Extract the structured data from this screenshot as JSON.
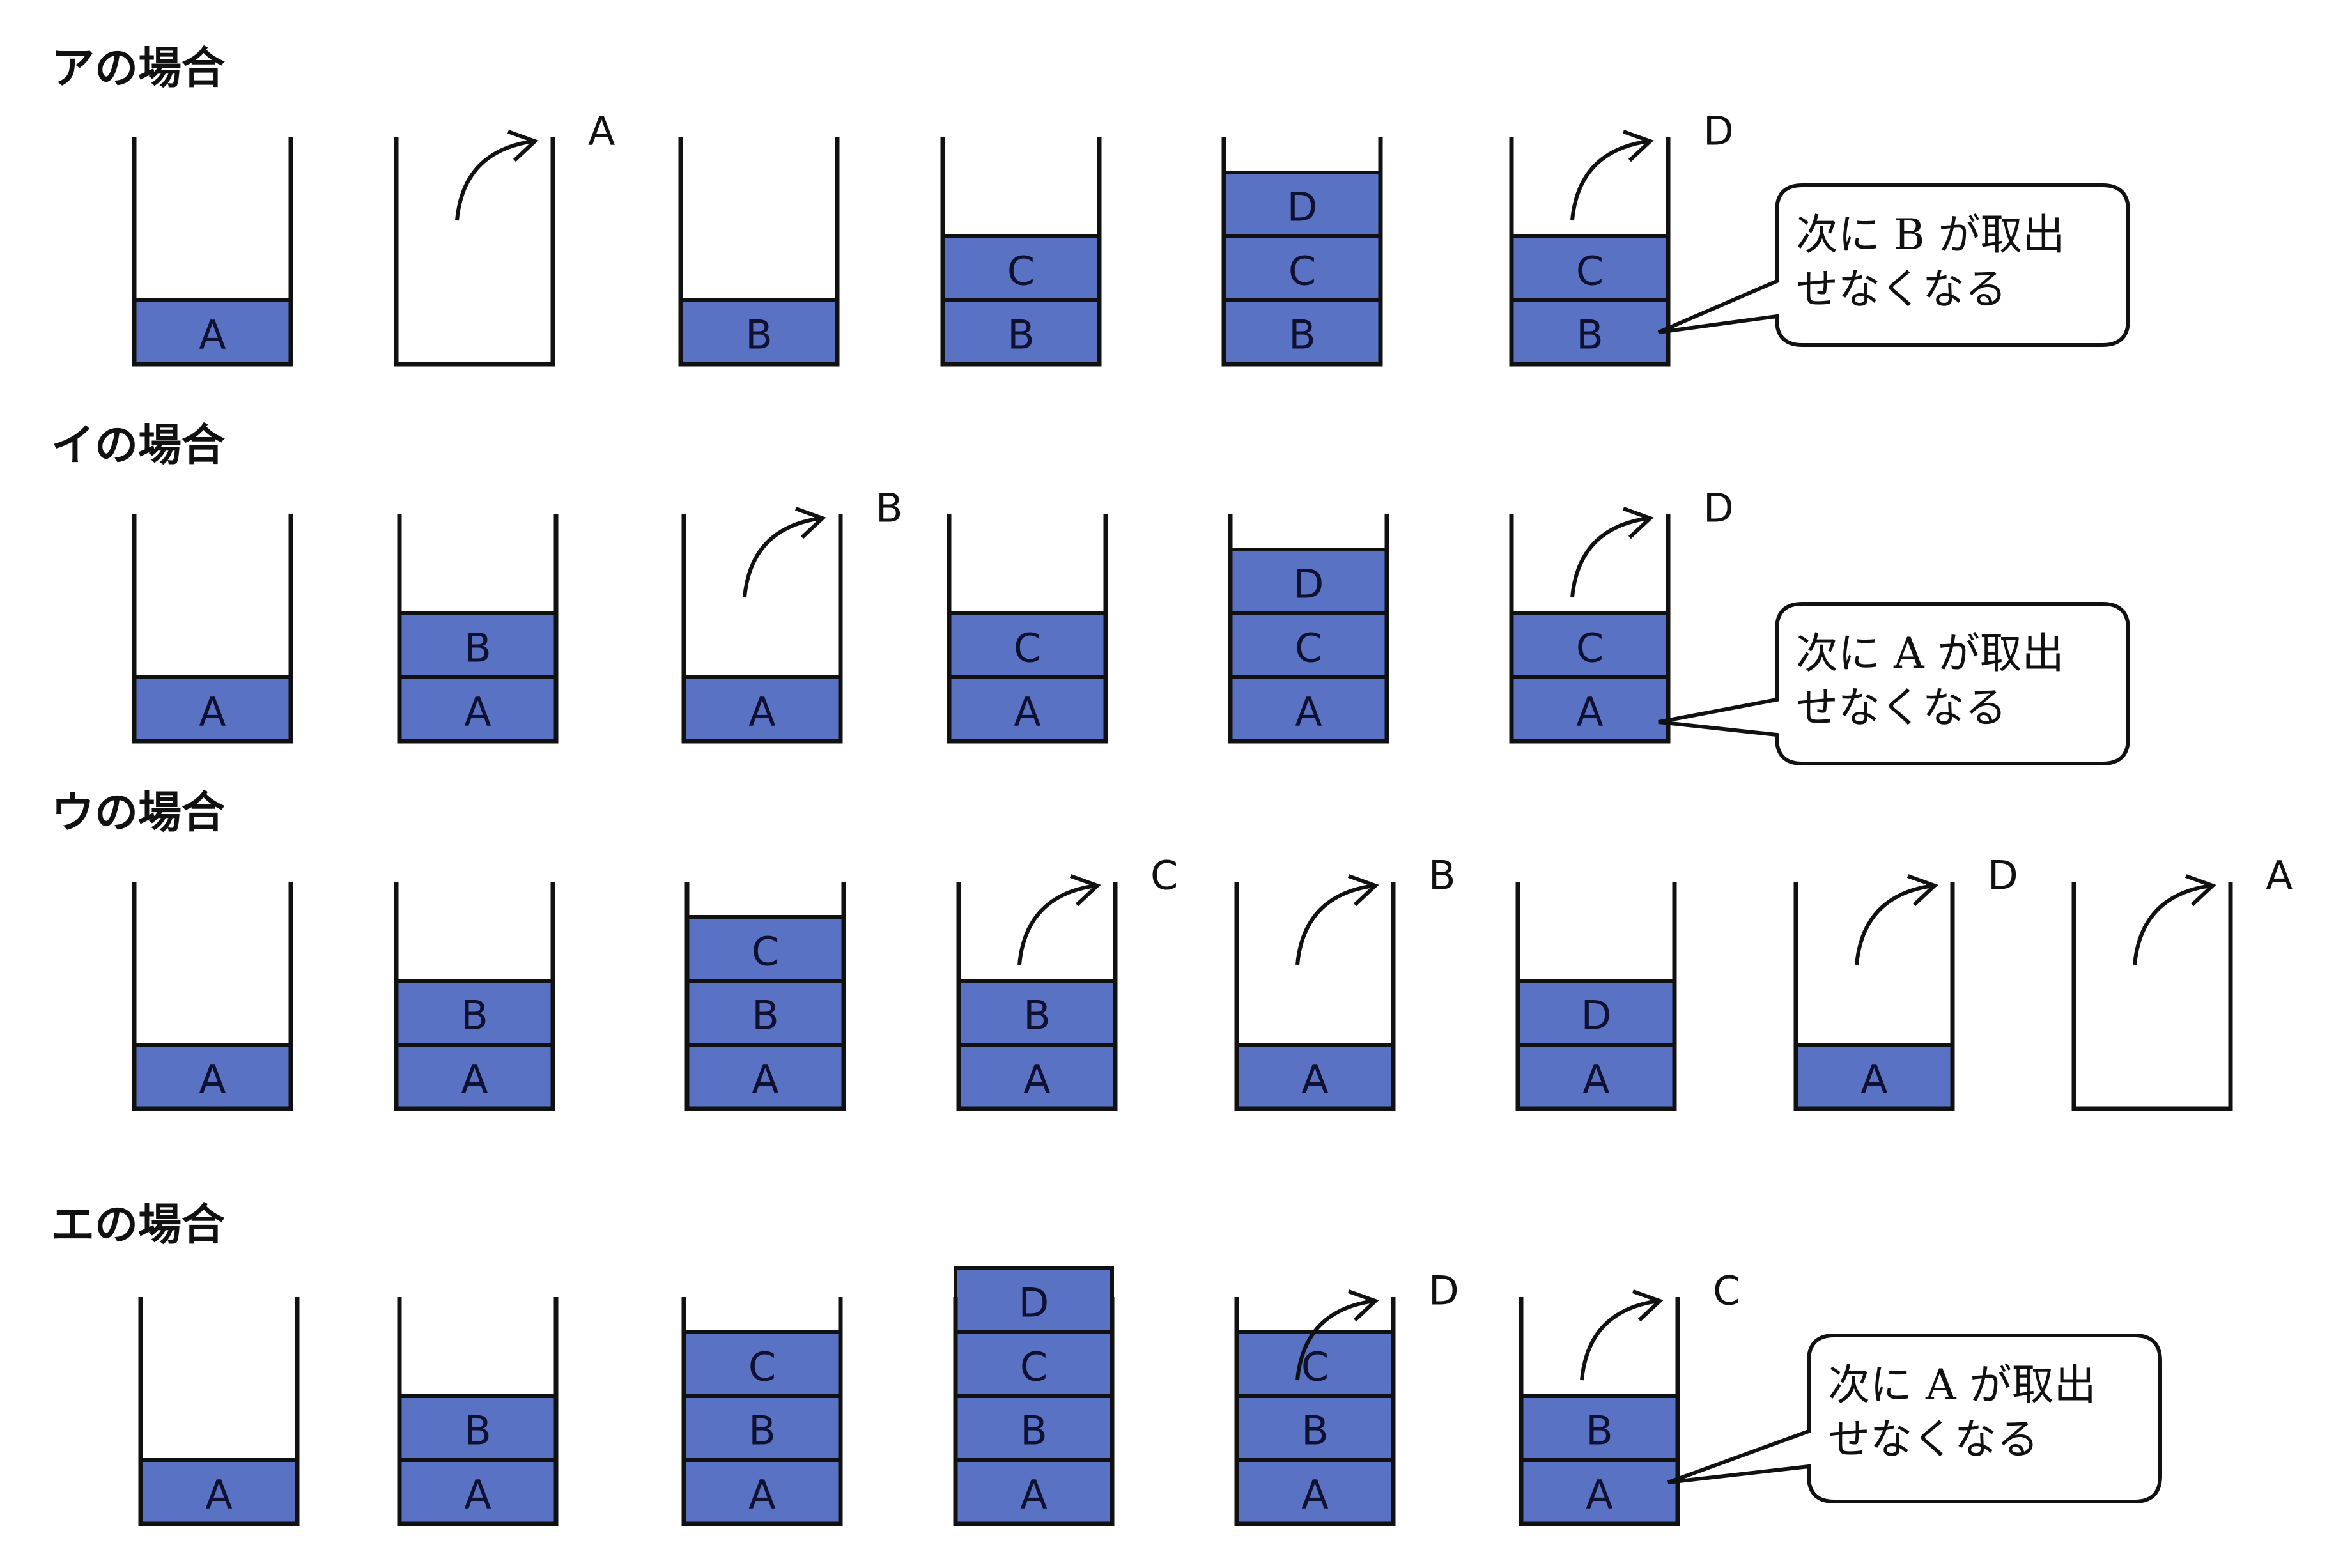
{
  "colors": {
    "block": "#5a72c4",
    "outline": "#111111",
    "background": "#ffffff"
  },
  "rows": [
    {
      "title": "アの場合",
      "stacks": [
        {
          "blocks": [
            "A"
          ]
        },
        {
          "blocks": [],
          "pop": "A"
        },
        {
          "blocks": [
            "B"
          ]
        },
        {
          "blocks": [
            "B",
            "C"
          ]
        },
        {
          "blocks": [
            "B",
            "C",
            "D"
          ]
        },
        {
          "blocks": [
            "B",
            "C"
          ],
          "pop": "D"
        }
      ],
      "note": {
        "line1": "次に B が取出",
        "line2": "せなくなる"
      }
    },
    {
      "title": "イの場合",
      "stacks": [
        {
          "blocks": [
            "A"
          ]
        },
        {
          "blocks": [
            "A",
            "B"
          ]
        },
        {
          "blocks": [
            "A"
          ],
          "pop": "B"
        },
        {
          "blocks": [
            "A",
            "C"
          ]
        },
        {
          "blocks": [
            "A",
            "C",
            "D"
          ]
        },
        {
          "blocks": [
            "A",
            "C"
          ],
          "pop": "D"
        }
      ],
      "note": {
        "line1": "次に A が取出",
        "line2": "せなくなる"
      }
    },
    {
      "title": "ウの場合",
      "stacks": [
        {
          "blocks": [
            "A"
          ]
        },
        {
          "blocks": [
            "A",
            "B"
          ]
        },
        {
          "blocks": [
            "A",
            "B",
            "C"
          ]
        },
        {
          "blocks": [
            "A",
            "B"
          ],
          "pop": "C"
        },
        {
          "blocks": [
            "A"
          ],
          "pop": "B"
        },
        {
          "blocks": [
            "A",
            "D"
          ]
        },
        {
          "blocks": [
            "A"
          ],
          "pop": "D"
        },
        {
          "blocks": [],
          "pop": "A"
        }
      ]
    },
    {
      "title": "エの場合",
      "stacks": [
        {
          "blocks": [
            "A"
          ]
        },
        {
          "blocks": [
            "A",
            "B"
          ]
        },
        {
          "blocks": [
            "A",
            "B",
            "C"
          ]
        },
        {
          "blocks": [
            "A",
            "B",
            "C",
            "D"
          ]
        },
        {
          "blocks": [
            "A",
            "B",
            "C"
          ],
          "pop": "D"
        },
        {
          "blocks": [
            "A",
            "B"
          ],
          "pop": "C"
        }
      ],
      "note": {
        "line1": "次に A が取出",
        "line2": "せなくなる"
      }
    }
  ]
}
